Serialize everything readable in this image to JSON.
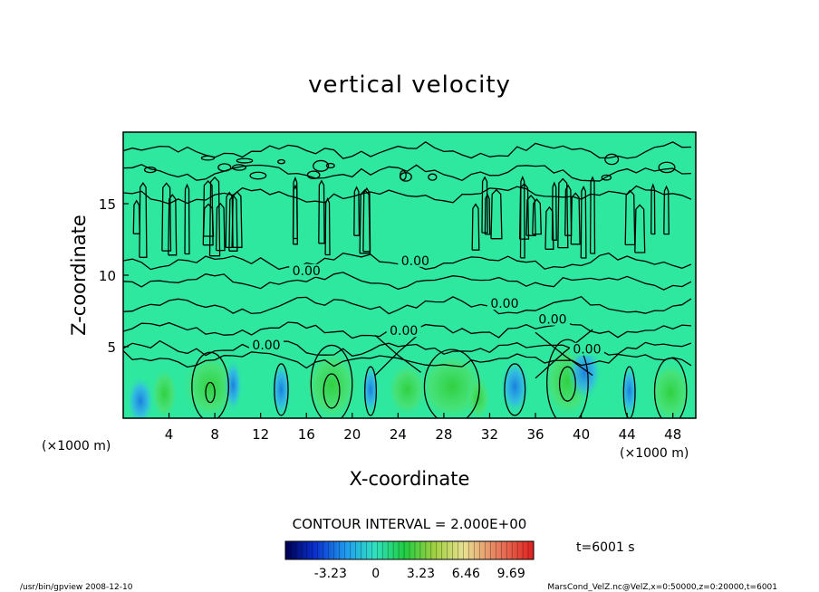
{
  "chart_data": {
    "type": "heatmap",
    "title": "vertical velocity",
    "xlabel": "X-coordinate",
    "ylabel": "Z-coordinate",
    "xunit": "(×1000 m)",
    "yunit": "(×1000 m)",
    "xlim": [
      0,
      50
    ],
    "ylim": [
      0,
      20
    ],
    "xticks": [
      4,
      8,
      12,
      16,
      20,
      24,
      28,
      32,
      36,
      40,
      44,
      48
    ],
    "yticks": [
      5,
      10,
      15
    ],
    "contour_interval_text": "CONTOUR INTERVAL = 2.000E+00",
    "contour_labels": [
      {
        "x": 16,
        "z": 10.2,
        "text": "0.00"
      },
      {
        "x": 25.5,
        "z": 10.9,
        "text": "0.00"
      },
      {
        "x": 24.5,
        "z": 6.0,
        "text": "0.00"
      },
      {
        "x": 37.5,
        "z": 6.8,
        "text": "0.00"
      },
      {
        "x": 33.3,
        "z": 7.9,
        "text": "0.00"
      },
      {
        "x": 12.5,
        "z": 5.0,
        "text": "0.00"
      },
      {
        "x": 40.5,
        "z": 4.7,
        "text": "0.00"
      }
    ],
    "colorbar": {
      "ticks": [
        "-3.23",
        "0",
        "3.23",
        "6.46",
        "9.69"
      ],
      "tick_values": [
        -3.23,
        0,
        3.23,
        6.46,
        9.69
      ],
      "range": [
        -6.46,
        11.3
      ]
    },
    "time_label": "t=6001 s",
    "colors": {
      "background_field": "#2ee8a0",
      "positive_updraft": "#22dd44",
      "negative_downdraft": "#2299ee",
      "contour_line": "#000000"
    }
  },
  "footer": {
    "left": "/usr/bin/gpview   2008-12-10",
    "right": "MarsCond_VelZ.nc@VelZ,x=0:50000,z=0:20000,t=6001"
  }
}
